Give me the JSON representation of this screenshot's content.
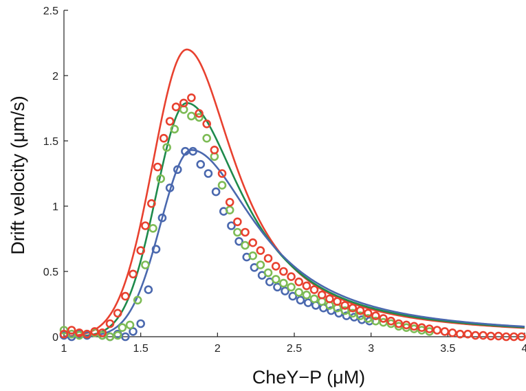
{
  "chart_data": {
    "type": "scatter",
    "xlabel": "CheY−P (μM)",
    "ylabel": "Drift velocity (μm/s)",
    "xlim": [
      1,
      4
    ],
    "ylim": [
      0,
      2.5
    ],
    "x_ticks": [
      "1",
      "1.5",
      "2",
      "2.5",
      "3",
      "3.5",
      "4"
    ],
    "y_ticks": [
      "0",
      "0.5",
      "1",
      "1.5",
      "2",
      "2.5"
    ],
    "grid": false,
    "legend": "none",
    "curves": [
      {
        "color": "#e8412f",
        "peak_x": 1.8,
        "peak_y": 2.2,
        "sigma_left": 0.22,
        "tail_width": 0.39
      },
      {
        "color": "#1e8a4c",
        "peak_x": 1.8,
        "peak_y": 1.79,
        "sigma_left": 0.2,
        "tail_width": 0.45
      },
      {
        "color": "#4a68ae",
        "peak_x": 1.83,
        "peak_y": 1.43,
        "sigma_left": 0.2,
        "tail_width": 0.52
      }
    ],
    "series": [
      {
        "color": "#e8412f",
        "points": [
          [
            1.0,
            0.02
          ],
          [
            1.05,
            0.05
          ],
          [
            1.1,
            0.03
          ],
          [
            1.15,
            0.02
          ],
          [
            1.2,
            0.04
          ],
          [
            1.25,
            0.03
          ],
          [
            1.3,
            0.1
          ],
          [
            1.35,
            0.18
          ],
          [
            1.4,
            0.31
          ],
          [
            1.45,
            0.48
          ],
          [
            1.5,
            0.66
          ],
          [
            1.53,
            0.85
          ],
          [
            1.57,
            1.02
          ],
          [
            1.61,
            1.3
          ],
          [
            1.65,
            1.52
          ],
          [
            1.69,
            1.65
          ],
          [
            1.73,
            1.76
          ],
          [
            1.78,
            1.79
          ],
          [
            1.83,
            1.83
          ],
          [
            1.88,
            1.71
          ],
          [
            1.93,
            1.63
          ],
          [
            1.98,
            1.43
          ],
          [
            2.03,
            1.25
          ],
          [
            2.08,
            1.03
          ],
          [
            2.13,
            0.88
          ],
          [
            2.18,
            0.8
          ],
          [
            2.23,
            0.72
          ],
          [
            2.28,
            0.66
          ],
          [
            2.33,
            0.6
          ],
          [
            2.38,
            0.54
          ],
          [
            2.43,
            0.5
          ],
          [
            2.48,
            0.46
          ],
          [
            2.53,
            0.42
          ],
          [
            2.58,
            0.39
          ],
          [
            2.63,
            0.36
          ],
          [
            2.68,
            0.32
          ],
          [
            2.73,
            0.29
          ],
          [
            2.78,
            0.27
          ],
          [
            2.83,
            0.24
          ],
          [
            2.88,
            0.22
          ],
          [
            2.93,
            0.2
          ],
          [
            2.98,
            0.18
          ],
          [
            3.03,
            0.16
          ],
          [
            3.08,
            0.14
          ],
          [
            3.13,
            0.12
          ],
          [
            3.18,
            0.1
          ],
          [
            3.23,
            0.09
          ],
          [
            3.28,
            0.08
          ],
          [
            3.33,
            0.07
          ],
          [
            3.38,
            0.06
          ],
          [
            3.43,
            0.05
          ],
          [
            3.48,
            0.04
          ],
          [
            3.53,
            0.03
          ],
          [
            3.58,
            0.02
          ],
          [
            3.63,
            0.02
          ],
          [
            3.68,
            0.01
          ],
          [
            3.73,
            0.01
          ],
          [
            3.78,
            0.005
          ],
          [
            3.83,
            0.005
          ],
          [
            3.88,
            0.0
          ],
          [
            3.93,
            0.0
          ],
          [
            3.98,
            0.0
          ]
        ]
      },
      {
        "color": "#7dbb55",
        "points": [
          [
            1.0,
            0.05
          ],
          [
            1.05,
            0.02
          ],
          [
            1.1,
            0.01
          ],
          [
            1.15,
            0.02
          ],
          [
            1.2,
            0.03
          ],
          [
            1.25,
            0.01
          ],
          [
            1.3,
            0.0
          ],
          [
            1.35,
            0.01
          ],
          [
            1.38,
            0.07
          ],
          [
            1.43,
            0.09
          ],
          [
            1.48,
            0.28
          ],
          [
            1.53,
            0.55
          ],
          [
            1.58,
            0.83
          ],
          [
            1.63,
            1.21
          ],
          [
            1.67,
            1.45
          ],
          [
            1.72,
            1.59
          ],
          [
            1.78,
            1.74
          ],
          [
            1.83,
            1.69
          ],
          [
            1.88,
            1.68
          ],
          [
            1.93,
            1.52
          ],
          [
            1.98,
            1.38
          ],
          [
            2.03,
            1.16
          ],
          [
            2.08,
            0.97
          ],
          [
            2.13,
            0.8
          ],
          [
            2.18,
            0.7
          ],
          [
            2.23,
            0.62
          ],
          [
            2.28,
            0.55
          ],
          [
            2.33,
            0.49
          ],
          [
            2.38,
            0.44
          ],
          [
            2.43,
            0.41
          ],
          [
            2.48,
            0.38
          ],
          [
            2.53,
            0.34
          ],
          [
            2.58,
            0.32
          ],
          [
            2.63,
            0.29
          ],
          [
            2.68,
            0.27
          ],
          [
            2.73,
            0.24
          ],
          [
            2.78,
            0.22
          ],
          [
            2.83,
            0.2
          ],
          [
            2.88,
            0.18
          ],
          [
            2.93,
            0.16
          ],
          [
            2.98,
            0.14
          ],
          [
            3.03,
            0.12
          ],
          [
            3.08,
            0.11
          ],
          [
            3.13,
            0.1
          ],
          [
            3.18,
            0.08
          ],
          [
            3.23,
            0.07
          ],
          [
            3.28,
            0.06
          ],
          [
            3.33,
            0.05
          ],
          [
            3.38,
            0.04
          ]
        ]
      },
      {
        "color": "#4a68ae",
        "points": [
          [
            1.0,
            0.01
          ],
          [
            1.05,
            0.0
          ],
          [
            1.1,
            0.02
          ],
          [
            1.15,
            0.01
          ],
          [
            1.25,
            0.01
          ],
          [
            1.3,
            0.0
          ],
          [
            1.35,
            0.02
          ],
          [
            1.4,
            0.0
          ],
          [
            1.45,
            0.04
          ],
          [
            1.5,
            0.1
          ],
          [
            1.55,
            0.36
          ],
          [
            1.6,
            0.67
          ],
          [
            1.64,
            0.91
          ],
          [
            1.69,
            1.14
          ],
          [
            1.74,
            1.28
          ],
          [
            1.79,
            1.42
          ],
          [
            1.84,
            1.42
          ],
          [
            1.89,
            1.32
          ],
          [
            1.94,
            1.25
          ],
          [
            1.99,
            1.11
          ],
          [
            2.04,
            0.96
          ],
          [
            2.09,
            0.85
          ],
          [
            2.14,
            0.73
          ],
          [
            2.19,
            0.61
          ],
          [
            2.24,
            0.53
          ],
          [
            2.29,
            0.47
          ],
          [
            2.34,
            0.42
          ],
          [
            2.39,
            0.38
          ],
          [
            2.44,
            0.35
          ],
          [
            2.49,
            0.31
          ],
          [
            2.54,
            0.28
          ],
          [
            2.59,
            0.26
          ],
          [
            2.64,
            0.24
          ],
          [
            2.69,
            0.22
          ],
          [
            2.74,
            0.2
          ],
          [
            2.79,
            0.18
          ],
          [
            2.84,
            0.16
          ],
          [
            2.89,
            0.15
          ],
          [
            2.94,
            0.13
          ],
          [
            2.99,
            0.12
          ]
        ]
      }
    ]
  }
}
